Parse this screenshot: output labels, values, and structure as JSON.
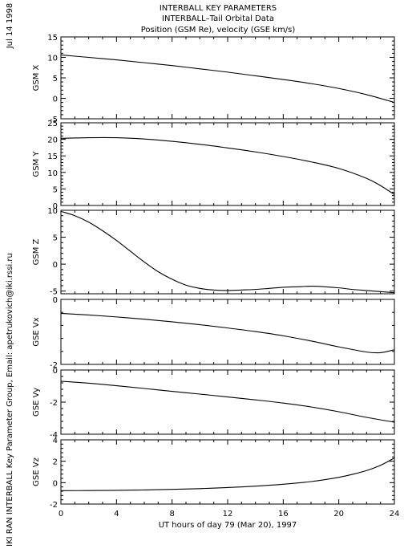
{
  "header": {
    "date": "Jul 14 1998",
    "title_lines": [
      "INTERBALL KEY PARAMETERS",
      "INTERBALL–Tail Orbital Data",
      "Position (GSM Re), velocity (GSE km/s)"
    ]
  },
  "footer": {
    "credit": "IKI RAN INTERBALL Key Parameter Group, Email: apetrukovich@iki.rssi.ru"
  },
  "chart_data": [
    {
      "type": "line",
      "ylabel": "GSM X",
      "ylim": [
        -5,
        15
      ],
      "yticks": [
        -5,
        0,
        5,
        10,
        15
      ],
      "xlim": [
        0,
        24
      ],
      "x": [
        0,
        2,
        4,
        6,
        8,
        10,
        12,
        14,
        16,
        18,
        20,
        22,
        24
      ],
      "values": [
        10.6,
        10.0,
        9.4,
        8.7,
        8.0,
        7.2,
        6.4,
        5.5,
        4.6,
        3.6,
        2.4,
        0.9,
        -1.0
      ]
    },
    {
      "type": "line",
      "ylabel": "GSM Y",
      "ylim": [
        0,
        25
      ],
      "yticks": [
        0,
        5,
        10,
        15,
        20,
        25
      ],
      "xlim": [
        0,
        24
      ],
      "x": [
        0,
        2,
        4,
        6,
        8,
        10,
        12,
        14,
        16,
        18,
        20,
        22,
        23,
        24
      ],
      "values": [
        20.3,
        20.5,
        20.5,
        20.1,
        19.4,
        18.5,
        17.4,
        16.2,
        14.8,
        13.2,
        11.2,
        8.2,
        6.0,
        3.3
      ]
    },
    {
      "type": "line",
      "ylabel": "GSM Z",
      "ylim": [
        -5.5,
        10
      ],
      "yticks": [
        -5,
        0,
        5,
        10
      ],
      "xlim": [
        0,
        24
      ],
      "x": [
        0,
        1,
        2,
        3,
        4,
        5,
        6,
        7,
        8,
        9,
        10,
        11,
        12,
        13,
        14,
        15,
        16,
        17,
        18,
        19,
        20,
        21,
        22,
        23,
        24
      ],
      "values": [
        9.8,
        9.0,
        7.8,
        6.2,
        4.4,
        2.4,
        0.4,
        -1.4,
        -2.8,
        -3.9,
        -4.5,
        -4.8,
        -4.9,
        -4.8,
        -4.7,
        -4.5,
        -4.3,
        -4.2,
        -4.1,
        -4.2,
        -4.4,
        -4.7,
        -4.9,
        -5.1,
        -5.3
      ]
    },
    {
      "type": "line",
      "ylabel": "GSE Vx",
      "ylim": [
        -2,
        0
      ],
      "yticks": [
        -2,
        0
      ],
      "xlim": [
        0,
        24
      ],
      "x": [
        0,
        2,
        4,
        6,
        8,
        10,
        12,
        14,
        16,
        18,
        20,
        22,
        23,
        24
      ],
      "values": [
        -0.43,
        -0.48,
        -0.54,
        -0.61,
        -0.69,
        -0.78,
        -0.88,
        -0.99,
        -1.12,
        -1.28,
        -1.46,
        -1.62,
        -1.64,
        -1.55
      ]
    },
    {
      "type": "line",
      "ylabel": "GSE Vy",
      "ylim": [
        -4,
        0
      ],
      "yticks": [
        -4,
        -2,
        0
      ],
      "xlim": [
        0,
        24
      ],
      "x": [
        0,
        2,
        4,
        6,
        8,
        10,
        12,
        14,
        16,
        18,
        20,
        22,
        24
      ],
      "values": [
        -0.7,
        -0.82,
        -0.98,
        -1.15,
        -1.33,
        -1.5,
        -1.68,
        -1.86,
        -2.06,
        -2.3,
        -2.6,
        -2.95,
        -3.25
      ]
    },
    {
      "type": "line",
      "ylabel": "GSE Vz",
      "ylim": [
        -2,
        4
      ],
      "yticks": [
        -2,
        0,
        2,
        4
      ],
      "xlim": [
        0,
        24
      ],
      "xticks": [
        0,
        4,
        8,
        12,
        16,
        20,
        24
      ],
      "xlabel": "UT hours of day  79 (Mar 20), 1997",
      "x": [
        0,
        2,
        4,
        6,
        8,
        10,
        12,
        14,
        16,
        18,
        19,
        20,
        21,
        22,
        23,
        24
      ],
      "values": [
        -0.75,
        -0.74,
        -0.72,
        -0.68,
        -0.63,
        -0.56,
        -0.46,
        -0.33,
        -0.15,
        0.1,
        0.28,
        0.5,
        0.78,
        1.13,
        1.62,
        2.3
      ]
    }
  ]
}
